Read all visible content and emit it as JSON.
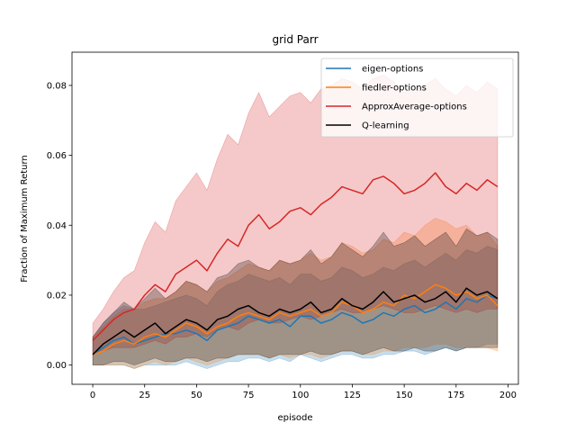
{
  "chart_data": {
    "type": "line",
    "title": "grid  Parr",
    "xlabel": "episode",
    "ylabel": "Fraction of Maximum Return",
    "xlim": [
      -10,
      205
    ],
    "ylim": [
      -0.0055,
      0.0895
    ],
    "xticks": [
      0,
      25,
      50,
      75,
      100,
      125,
      150,
      175,
      200
    ],
    "yticks": [
      0.0,
      0.02,
      0.04,
      0.06,
      0.08
    ],
    "xtick_labels": [
      "0",
      "25",
      "50",
      "75",
      "100",
      "125",
      "150",
      "175",
      "200"
    ],
    "ytick_labels": [
      "0.00",
      "0.02",
      "0.04",
      "0.06",
      "0.08"
    ],
    "grid": false,
    "legend_position": "top-right",
    "series": [
      {
        "name": "eigen-options",
        "color": "#1f77b4",
        "x": [
          0,
          5,
          10,
          15,
          20,
          25,
          30,
          35,
          40,
          45,
          50,
          55,
          60,
          65,
          70,
          75,
          80,
          85,
          90,
          95,
          100,
          105,
          110,
          115,
          120,
          125,
          130,
          135,
          140,
          145,
          150,
          155,
          160,
          165,
          170,
          175,
          180,
          185,
          190,
          195
        ],
        "mean": [
          0.003,
          0.005,
          0.007,
          0.008,
          0.006,
          0.007,
          0.008,
          0.009,
          0.009,
          0.01,
          0.009,
          0.007,
          0.01,
          0.011,
          0.012,
          0.014,
          0.013,
          0.012,
          0.013,
          0.011,
          0.014,
          0.014,
          0.012,
          0.013,
          0.015,
          0.014,
          0.012,
          0.013,
          0.015,
          0.014,
          0.016,
          0.017,
          0.015,
          0.016,
          0.018,
          0.016,
          0.019,
          0.018,
          0.02,
          0.019
        ],
        "lower": [
          0.0,
          0.0,
          0.0,
          0.0,
          -0.001,
          0.0,
          0.0,
          0.0,
          0.0,
          0.001,
          0.0,
          -0.001,
          0.0,
          0.001,
          0.001,
          0.002,
          0.002,
          0.001,
          0.002,
          0.001,
          0.003,
          0.002,
          0.001,
          0.002,
          0.003,
          0.003,
          0.002,
          0.002,
          0.003,
          0.003,
          0.004,
          0.004,
          0.003,
          0.004,
          0.005,
          0.004,
          0.005,
          0.005,
          0.006,
          0.006
        ],
        "upper": [
          0.008,
          0.012,
          0.015,
          0.017,
          0.016,
          0.016,
          0.017,
          0.018,
          0.019,
          0.02,
          0.019,
          0.017,
          0.021,
          0.023,
          0.024,
          0.026,
          0.025,
          0.024,
          0.025,
          0.023,
          0.026,
          0.026,
          0.024,
          0.025,
          0.028,
          0.027,
          0.025,
          0.026,
          0.028,
          0.027,
          0.029,
          0.03,
          0.028,
          0.03,
          0.032,
          0.03,
          0.033,
          0.032,
          0.034,
          0.033
        ]
      },
      {
        "name": "fiedler-options",
        "color": "#ff7f0e",
        "x": [
          0,
          5,
          10,
          15,
          20,
          25,
          30,
          35,
          40,
          45,
          50,
          55,
          60,
          65,
          70,
          75,
          80,
          85,
          90,
          95,
          100,
          105,
          110,
          115,
          120,
          125,
          130,
          135,
          140,
          145,
          150,
          155,
          160,
          165,
          170,
          175,
          180,
          185,
          190,
          195
        ],
        "mean": [
          0.003,
          0.004,
          0.006,
          0.007,
          0.006,
          0.008,
          0.009,
          0.008,
          0.01,
          0.012,
          0.011,
          0.009,
          0.011,
          0.012,
          0.014,
          0.015,
          0.014,
          0.013,
          0.015,
          0.014,
          0.015,
          0.016,
          0.014,
          0.015,
          0.018,
          0.017,
          0.015,
          0.016,
          0.018,
          0.017,
          0.02,
          0.019,
          0.021,
          0.023,
          0.022,
          0.02,
          0.021,
          0.019,
          0.02,
          0.017
        ],
        "lower": [
          0.0,
          0.0,
          0.0,
          0.0,
          -0.001,
          0.0,
          0.001,
          0.0,
          0.001,
          0.002,
          0.001,
          0.0,
          0.001,
          0.002,
          0.003,
          0.003,
          0.003,
          0.002,
          0.003,
          0.002,
          0.003,
          0.003,
          0.002,
          0.003,
          0.004,
          0.004,
          0.003,
          0.003,
          0.004,
          0.004,
          0.005,
          0.005,
          0.005,
          0.006,
          0.006,
          0.005,
          0.005,
          0.005,
          0.005,
          0.004
        ],
        "upper": [
          0.008,
          0.011,
          0.014,
          0.016,
          0.016,
          0.018,
          0.019,
          0.019,
          0.021,
          0.024,
          0.023,
          0.021,
          0.024,
          0.025,
          0.027,
          0.029,
          0.028,
          0.027,
          0.03,
          0.029,
          0.03,
          0.032,
          0.03,
          0.031,
          0.035,
          0.034,
          0.032,
          0.033,
          0.036,
          0.035,
          0.038,
          0.037,
          0.04,
          0.042,
          0.041,
          0.039,
          0.04,
          0.037,
          0.038,
          0.034
        ]
      },
      {
        "name": "ApproxAverage-options",
        "color": "#d62728",
        "x": [
          0,
          5,
          10,
          15,
          20,
          25,
          30,
          35,
          40,
          45,
          50,
          55,
          60,
          65,
          70,
          75,
          80,
          85,
          90,
          95,
          100,
          105,
          110,
          115,
          120,
          125,
          130,
          135,
          140,
          145,
          150,
          155,
          160,
          165,
          170,
          175,
          180,
          185,
          190,
          195
        ],
        "mean": [
          0.007,
          0.01,
          0.013,
          0.015,
          0.016,
          0.02,
          0.023,
          0.021,
          0.026,
          0.028,
          0.03,
          0.027,
          0.032,
          0.036,
          0.034,
          0.04,
          0.043,
          0.039,
          0.041,
          0.044,
          0.045,
          0.043,
          0.046,
          0.048,
          0.051,
          0.05,
          0.049,
          0.053,
          0.054,
          0.052,
          0.049,
          0.05,
          0.052,
          0.055,
          0.051,
          0.049,
          0.052,
          0.05,
          0.053,
          0.051
        ],
        "lower": [
          0.003,
          0.004,
          0.005,
          0.005,
          0.005,
          0.006,
          0.007,
          0.006,
          0.008,
          0.008,
          0.009,
          0.008,
          0.01,
          0.011,
          0.01,
          0.012,
          0.013,
          0.012,
          0.012,
          0.013,
          0.014,
          0.013,
          0.014,
          0.015,
          0.016,
          0.015,
          0.015,
          0.016,
          0.017,
          0.016,
          0.015,
          0.015,
          0.016,
          0.017,
          0.016,
          0.015,
          0.016,
          0.015,
          0.016,
          0.016
        ],
        "upper": [
          0.012,
          0.016,
          0.021,
          0.025,
          0.027,
          0.035,
          0.041,
          0.038,
          0.047,
          0.051,
          0.055,
          0.05,
          0.059,
          0.066,
          0.063,
          0.072,
          0.078,
          0.071,
          0.074,
          0.077,
          0.078,
          0.075,
          0.079,
          0.08,
          0.082,
          0.081,
          0.079,
          0.082,
          0.083,
          0.081,
          0.078,
          0.079,
          0.08,
          0.082,
          0.079,
          0.077,
          0.08,
          0.078,
          0.081,
          0.079
        ]
      },
      {
        "name": "Q-learning",
        "color": "#000000",
        "x": [
          0,
          5,
          10,
          15,
          20,
          25,
          30,
          35,
          40,
          45,
          50,
          55,
          60,
          65,
          70,
          75,
          80,
          85,
          90,
          95,
          100,
          105,
          110,
          115,
          120,
          125,
          130,
          135,
          140,
          145,
          150,
          155,
          160,
          165,
          170,
          175,
          180,
          185,
          190,
          195
        ],
        "mean": [
          0.003,
          0.006,
          0.008,
          0.01,
          0.008,
          0.01,
          0.012,
          0.009,
          0.011,
          0.013,
          0.012,
          0.01,
          0.013,
          0.014,
          0.016,
          0.017,
          0.015,
          0.014,
          0.016,
          0.015,
          0.016,
          0.018,
          0.015,
          0.016,
          0.019,
          0.017,
          0.016,
          0.018,
          0.021,
          0.018,
          0.019,
          0.02,
          0.018,
          0.019,
          0.021,
          0.018,
          0.022,
          0.02,
          0.021,
          0.019
        ],
        "lower": [
          0.0,
          0.0,
          0.001,
          0.001,
          0.0,
          0.001,
          0.002,
          0.001,
          0.001,
          0.002,
          0.002,
          0.001,
          0.002,
          0.002,
          0.003,
          0.003,
          0.003,
          0.002,
          0.003,
          0.003,
          0.003,
          0.004,
          0.003,
          0.003,
          0.004,
          0.004,
          0.003,
          0.004,
          0.005,
          0.004,
          0.004,
          0.005,
          0.004,
          0.004,
          0.005,
          0.004,
          0.005,
          0.005,
          0.005,
          0.005
        ],
        "upper": [
          0.008,
          0.012,
          0.015,
          0.018,
          0.016,
          0.019,
          0.022,
          0.019,
          0.021,
          0.024,
          0.023,
          0.021,
          0.025,
          0.026,
          0.029,
          0.03,
          0.028,
          0.027,
          0.03,
          0.029,
          0.03,
          0.033,
          0.029,
          0.031,
          0.035,
          0.033,
          0.031,
          0.034,
          0.038,
          0.034,
          0.035,
          0.037,
          0.034,
          0.036,
          0.038,
          0.034,
          0.039,
          0.037,
          0.038,
          0.036
        ]
      }
    ]
  }
}
